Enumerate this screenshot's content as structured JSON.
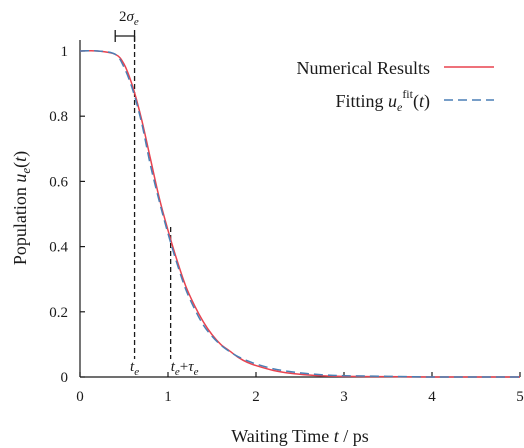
{
  "chart_data": {
    "type": "line",
    "xlabel": "Waiting Time t / ps",
    "ylabel": "Population u_e(t)",
    "xlim": [
      0,
      5
    ],
    "ylim": [
      0,
      1
    ],
    "x_ticks": [
      "0",
      "1",
      "2",
      "3",
      "4",
      "5"
    ],
    "y_ticks": [
      "0",
      "0.2",
      "0.4",
      "0.6",
      "0.8",
      "1"
    ],
    "grid": false,
    "legend_position": "top-right",
    "series": [
      {
        "name": "Numerical Results",
        "color": "#e8424f",
        "style": "solid",
        "x": [
          0,
          0.2,
          0.4,
          0.5,
          0.6,
          0.7,
          0.8,
          0.9,
          1.0,
          1.1,
          1.2,
          1.3,
          1.4,
          1.5,
          1.6,
          1.7,
          1.8,
          1.9,
          2.0,
          2.2,
          2.4,
          2.6,
          2.8,
          3.0,
          3.5,
          4.0,
          4.5,
          5.0
        ],
        "y": [
          1.0,
          1.0,
          0.99,
          0.96,
          0.89,
          0.79,
          0.67,
          0.55,
          0.45,
          0.36,
          0.28,
          0.22,
          0.17,
          0.13,
          0.1,
          0.08,
          0.06,
          0.045,
          0.035,
          0.02,
          0.011,
          0.006,
          0.003,
          0.002,
          0.001,
          0.0,
          0.0,
          0.0
        ]
      },
      {
        "name": "Fitting u_e^fit(t)",
        "color": "#4a7fb5",
        "style": "dashed",
        "x": [
          0,
          0.2,
          0.4,
          0.5,
          0.6,
          0.7,
          0.8,
          0.9,
          1.0,
          1.1,
          1.2,
          1.3,
          1.4,
          1.5,
          1.6,
          1.7,
          1.8,
          1.9,
          2.0,
          2.2,
          2.4,
          2.6,
          2.8,
          3.0,
          3.5,
          4.0,
          4.5,
          5.0
        ],
        "y": [
          1.0,
          1.0,
          0.99,
          0.95,
          0.88,
          0.78,
          0.65,
          0.54,
          0.44,
          0.35,
          0.27,
          0.21,
          0.16,
          0.125,
          0.098,
          0.078,
          0.062,
          0.05,
          0.04,
          0.025,
          0.016,
          0.01,
          0.006,
          0.004,
          0.002,
          0.0,
          0.0,
          0.0
        ]
      }
    ],
    "annotations": {
      "t_e": {
        "x": 0.62,
        "label": "t_e"
      },
      "t_e_plus_tau": {
        "x": 1.03,
        "label": "t_e+τ_e"
      },
      "sigma_bracket": {
        "x_start": 0.4,
        "x_end": 0.62,
        "label": "2σ_e"
      }
    }
  }
}
